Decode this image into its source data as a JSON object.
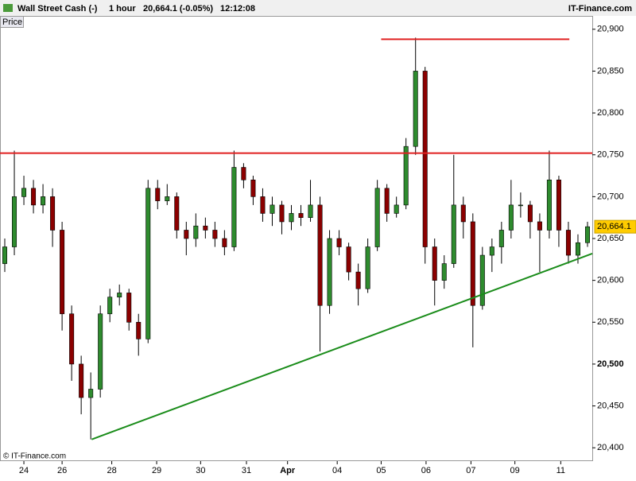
{
  "header": {
    "instrument": "Wall Street Cash (-)",
    "interval": "1 hour",
    "quote": "20,664.1 (-0.05%)",
    "time": "12:12:08",
    "brand": "IT-Finance.com"
  },
  "panel_label": "Price",
  "copyright": "© IT-Finance.com",
  "chart_data": {
    "type": "candlestick",
    "x": [
      0,
      1,
      2,
      3,
      4,
      5,
      6,
      7,
      8,
      9,
      10,
      11,
      12,
      13,
      14,
      15,
      16,
      17,
      18,
      19,
      20,
      21,
      22,
      23,
      24,
      25,
      26,
      27,
      28,
      29,
      30,
      31,
      32,
      33,
      34,
      35,
      36,
      37,
      38,
      39,
      40,
      41,
      42,
      43,
      44,
      45,
      46,
      47,
      48,
      49,
      50,
      51,
      52,
      53,
      54,
      55,
      56,
      57,
      58,
      59,
      60,
      61
    ],
    "open": [
      20620,
      20640,
      20700,
      20710,
      20690,
      20700,
      20660,
      20560,
      20500,
      20460,
      20470,
      20560,
      20580,
      20585,
      20550,
      20530,
      20710,
      20695,
      20700,
      20660,
      20650,
      20665,
      20660,
      20650,
      20640,
      20735,
      20720,
      20700,
      20680,
      20690,
      20670,
      20680,
      20675,
      20690,
      20570,
      20650,
      20640,
      20610,
      20590,
      20640,
      20710,
      20680,
      20690,
      20760,
      20850,
      20640,
      20600,
      20620,
      20690,
      20670,
      20570,
      20630,
      20640,
      20660,
      20690,
      20690,
      20670,
      20660,
      20720,
      20660,
      20630,
      20645
    ],
    "high": [
      20650,
      20755,
      20725,
      20720,
      20715,
      20710,
      20670,
      20570,
      20510,
      20490,
      20570,
      20590,
      20595,
      20590,
      20560,
      20720,
      20720,
      20715,
      20705,
      20670,
      20680,
      20675,
      20670,
      20660,
      20755,
      20740,
      20725,
      20710,
      20700,
      20695,
      20690,
      20690,
      20720,
      20700,
      20660,
      20660,
      20645,
      20620,
      20650,
      20720,
      20715,
      20700,
      20770,
      20890,
      20855,
      20650,
      20630,
      20750,
      20700,
      20680,
      20640,
      20650,
      20670,
      20720,
      20705,
      20695,
      20680,
      20755,
      20725,
      20670,
      20655,
      20670
    ],
    "low": [
      20610,
      20630,
      20690,
      20680,
      20680,
      20640,
      20540,
      20480,
      20440,
      20410,
      20460,
      20550,
      20570,
      20540,
      20510,
      20525,
      20685,
      20690,
      20650,
      20630,
      20640,
      20650,
      20640,
      20630,
      20635,
      20710,
      20690,
      20670,
      20665,
      20655,
      20660,
      20665,
      20670,
      20515,
      20560,
      20630,
      20600,
      20570,
      20585,
      20635,
      20670,
      20675,
      20685,
      20750,
      20620,
      20570,
      20590,
      20615,
      20650,
      20520,
      20565,
      20610,
      20620,
      20650,
      20675,
      20650,
      20610,
      20650,
      20640,
      20620,
      20620,
      20640
    ],
    "close": [
      20640,
      20700,
      20710,
      20690,
      20700,
      20660,
      20560,
      20500,
      20460,
      20470,
      20560,
      20580,
      20585,
      20550,
      20530,
      20710,
      20695,
      20700,
      20660,
      20650,
      20665,
      20660,
      20650,
      20640,
      20735,
      20720,
      20700,
      20680,
      20690,
      20670,
      20680,
      20675,
      20690,
      20570,
      20650,
      20640,
      20610,
      20590,
      20640,
      20710,
      20680,
      20690,
      20760,
      20850,
      20640,
      20600,
      20620,
      20690,
      20670,
      20570,
      20630,
      20640,
      20660,
      20690,
      20690,
      20670,
      20660,
      20720,
      20660,
      20630,
      20645,
      20664.1
    ],
    "up_color": "#2e8b2e",
    "down_color": "#8b0000",
    "xlim": [
      -0.5,
      61.5
    ],
    "xticks": [
      {
        "value": 2,
        "label": "24"
      },
      {
        "value": 6,
        "label": "26"
      },
      {
        "value": 11.2,
        "label": "28"
      },
      {
        "value": 15.9,
        "label": "29"
      },
      {
        "value": 20.5,
        "label": "30"
      },
      {
        "value": 25.3,
        "label": "31"
      },
      {
        "value": 29.6,
        "label": "Apr"
      },
      {
        "value": 34.8,
        "label": "04"
      },
      {
        "value": 39.4,
        "label": "05"
      },
      {
        "value": 44.1,
        "label": "06"
      },
      {
        "value": 48.8,
        "label": "07"
      },
      {
        "value": 53.4,
        "label": "09"
      },
      {
        "value": 58.2,
        "label": "11"
      }
    ],
    "ylim": [
      20385,
      20915
    ],
    "yticks": [
      {
        "value": 20400,
        "label": "20,400"
      },
      {
        "value": 20450,
        "label": "20,450"
      },
      {
        "value": 20500,
        "label": "20,500"
      },
      {
        "value": 20550,
        "label": "20,550"
      },
      {
        "value": 20600,
        "label": "20,600"
      },
      {
        "value": 20650,
        "label": "20,650"
      },
      {
        "value": 20700,
        "label": "20,700"
      },
      {
        "value": 20750,
        "label": "20,750"
      },
      {
        "value": 20800,
        "label": "20,800"
      },
      {
        "value": 20850,
        "label": "20,850"
      },
      {
        "value": 20900,
        "label": "20,900"
      }
    ],
    "last_price": {
      "value": 20664.1,
      "label": "20,664.1"
    },
    "lines": [
      {
        "x1": -0.5,
        "y1": 20752,
        "x2": 61.5,
        "y2": 20752,
        "color": "#e02020"
      },
      {
        "x1": 39.4,
        "y1": 20888,
        "x2": 59.1,
        "y2": 20888,
        "color": "#e02020"
      },
      {
        "x1": 9.1,
        "y1": 20410,
        "x2": 61.5,
        "y2": 20632,
        "color": "#1a8c1a"
      }
    ]
  }
}
